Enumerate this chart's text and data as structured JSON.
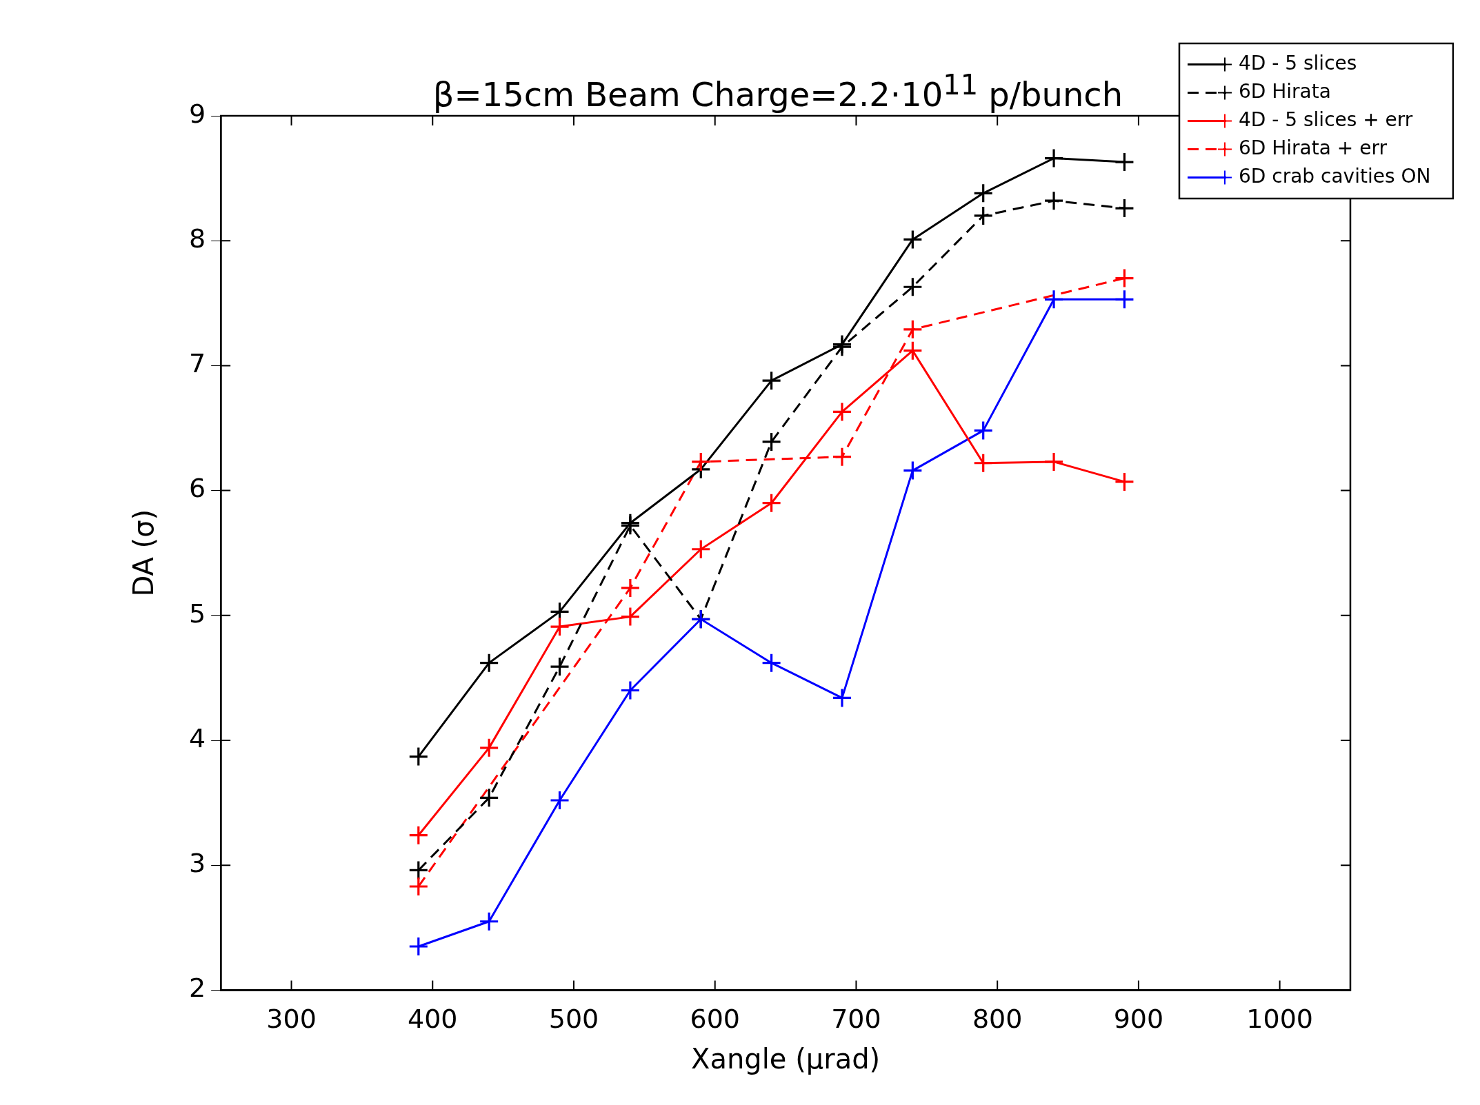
{
  "chart_data": {
    "type": "line",
    "title": "β=15cm  Beam Charge=2.2·10$^{11}$ p/bunch",
    "xlabel": "Xangle (μrad)",
    "ylabel": "DA (σ)",
    "x": [
      390,
      440,
      490,
      540,
      590,
      640,
      690,
      740,
      790,
      840,
      890
    ],
    "series": [
      {
        "name": "4D - 5 slices",
        "color": "#000000",
        "line_style": "solid",
        "values": [
          3.87,
          4.62,
          5.03,
          5.74,
          6.17,
          6.88,
          7.17,
          8.01,
          8.38,
          8.66,
          8.63
        ]
      },
      {
        "name": "6D Hirata",
        "color": "#000000",
        "line_style": "dashed",
        "values": [
          2.96,
          3.54,
          4.59,
          5.72,
          4.97,
          6.39,
          7.15,
          7.63,
          8.2,
          8.32,
          8.26
        ]
      },
      {
        "name": "4D - 5 slices + err",
        "color": "#ff0000",
        "line_style": "solid",
        "values": [
          3.24,
          3.94,
          4.91,
          4.99,
          5.53,
          5.9,
          6.63,
          7.12,
          6.22,
          6.23,
          6.07
        ]
      },
      {
        "name": "6D Hirata + err",
        "color": "#ff0000",
        "line_style": "dashed",
        "x": [
          390,
          540,
          590,
          690,
          740,
          890
        ],
        "values": [
          2.83,
          5.22,
          6.23,
          6.27,
          7.29,
          7.7
        ]
      },
      {
        "name": "6D crab cavities ON",
        "color": "#0000ff",
        "line_style": "solid",
        "values": [
          2.35,
          2.55,
          3.52,
          4.4,
          4.97,
          4.62,
          4.34,
          6.16,
          6.48,
          7.53,
          7.53
        ]
      }
    ],
    "xlim": [
      250,
      1050
    ],
    "xticks": [
      300,
      400,
      500,
      600,
      700,
      800,
      900,
      1000
    ],
    "ylim": [
      2,
      9
    ],
    "yticks": [
      2,
      3,
      4,
      5,
      6,
      7,
      8,
      9
    ],
    "grid": false,
    "legend": "top right",
    "marker": "cross"
  }
}
